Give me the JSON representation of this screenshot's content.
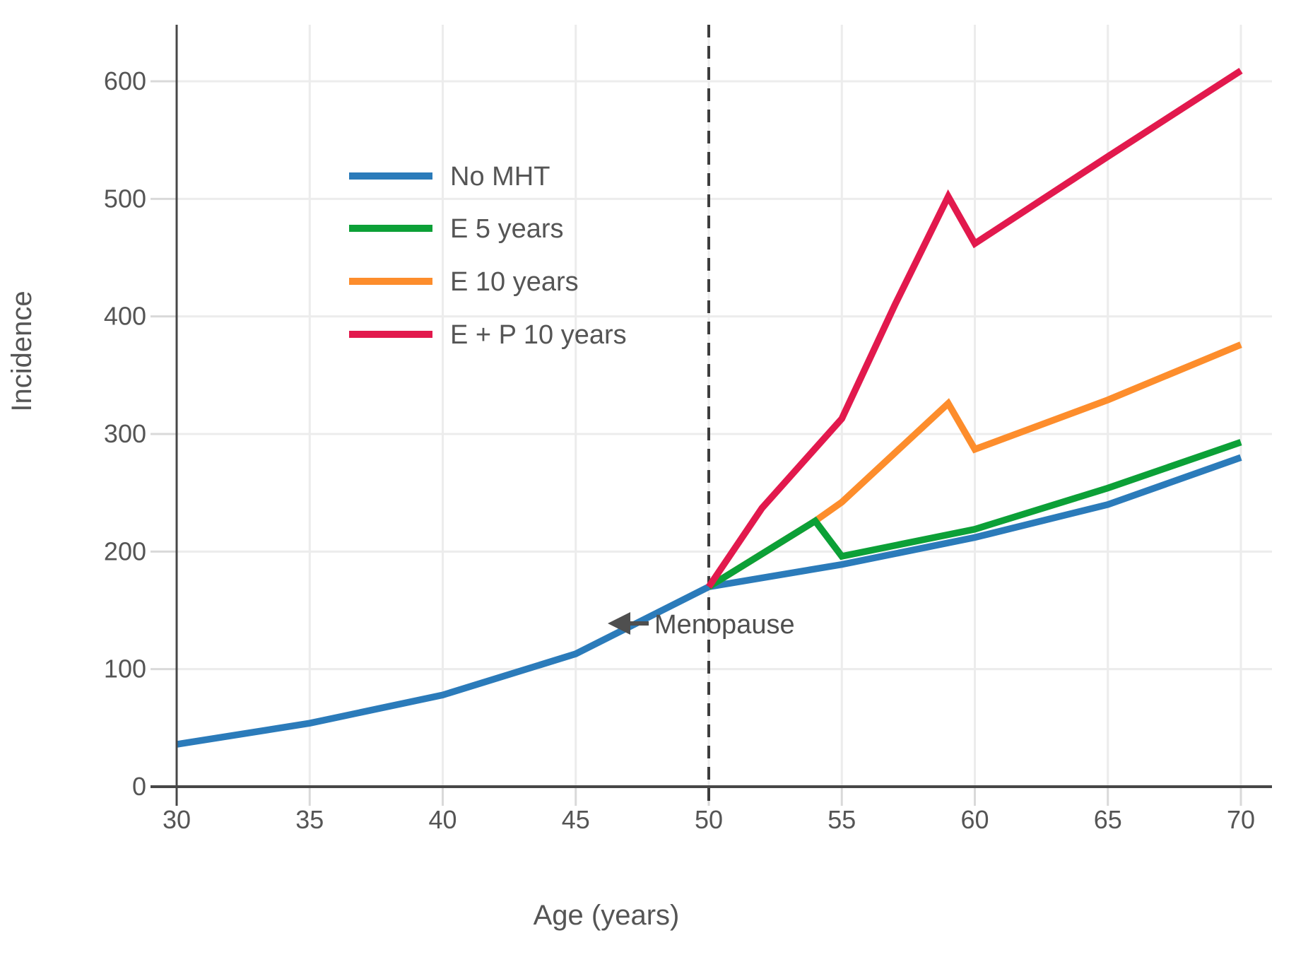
{
  "figure": {
    "background": "#ffffff",
    "annotation": {
      "text": "Menopause"
    },
    "style": {
      "grid_color": "#ececec",
      "tick_color": "#d9d9d9",
      "spine_color": "#474747",
      "text_color": "#555555",
      "dashed_line_color": "#3d3d3d"
    }
  },
  "chart_data": {
    "type": "line",
    "title": "",
    "xlabel": "Age (years)",
    "ylabel": "Incidence",
    "x_ticks": [
      30,
      35,
      40,
      45,
      50,
      55,
      60,
      65,
      70
    ],
    "y_ticks": [
      0,
      100,
      200,
      300,
      400,
      500,
      600
    ],
    "xlim": [
      30,
      71.2
    ],
    "ylim": [
      0,
      648
    ],
    "grid": true,
    "legend_position": "upper-left-inside",
    "vertical_reference_line": {
      "x": 50,
      "style": "dashed",
      "label": "Menopause"
    },
    "annotations": [
      {
        "text": "Menopause",
        "x": 51.5,
        "y": 139,
        "arrow_points_to": "dashed line at age 50"
      }
    ],
    "series": [
      {
        "name": "No MHT",
        "color": "#2b7bba",
        "points": [
          [
            30,
            36
          ],
          [
            35,
            54
          ],
          [
            40,
            78
          ],
          [
            45,
            113
          ],
          [
            50,
            170
          ],
          [
            55,
            189
          ],
          [
            60,
            212
          ],
          [
            65,
            240
          ],
          [
            70,
            280
          ]
        ]
      },
      {
        "name": "E 5 years",
        "color": "#0ca037",
        "points": [
          [
            50,
            170
          ],
          [
            54,
            226
          ],
          [
            55,
            196
          ],
          [
            60,
            219
          ],
          [
            65,
            254
          ],
          [
            70,
            293
          ]
        ]
      },
      {
        "name": "E 10 years",
        "color": "#fd8d2c",
        "points": [
          [
            50,
            170
          ],
          [
            54,
            226
          ],
          [
            55,
            242
          ],
          [
            59,
            326
          ],
          [
            60,
            287
          ],
          [
            65,
            329
          ],
          [
            70,
            376
          ]
        ]
      },
      {
        "name": "E + P 10 years",
        "color": "#e2194d",
        "points": [
          [
            50,
            170
          ],
          [
            52,
            237
          ],
          [
            55,
            313
          ],
          [
            57,
            410
          ],
          [
            59,
            502
          ],
          [
            60,
            462
          ],
          [
            65,
            536
          ],
          [
            70,
            609
          ]
        ]
      }
    ]
  }
}
